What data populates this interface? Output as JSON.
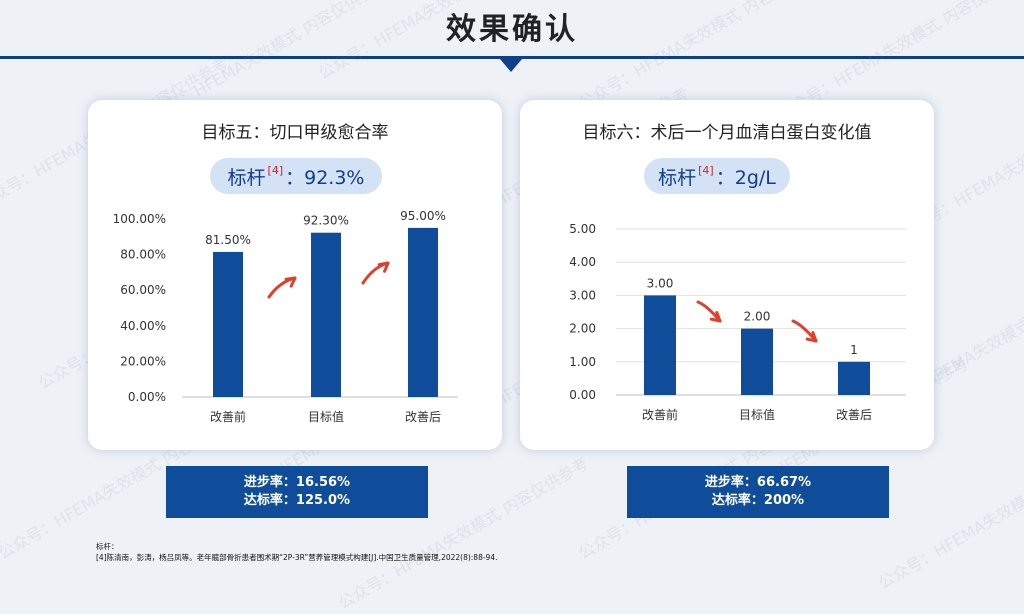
{
  "page": {
    "title": "效果确认",
    "watermark": "公众号：HFEMA失效模式 内容仅供参考"
  },
  "colors": {
    "accent": "#0f4c99",
    "arrow": "#e0402b",
    "red_ref": "#d42020"
  },
  "left_card": {
    "title": "目标五：切口甲级愈合率",
    "benchmark_label": "标杆",
    "benchmark_ref": "[4]",
    "benchmark_value": "：92.3%",
    "summary_line1": "进步率：16.56%",
    "summary_line2": "达标率：125.0%"
  },
  "right_card": {
    "title": "目标六：术后一个月血清白蛋白变化值",
    "benchmark_label": "标杆",
    "benchmark_ref": "[4]",
    "benchmark_value": "：2g/L",
    "summary_line1": "进步率：66.67%",
    "summary_line2": "达标率：200%"
  },
  "footnote": {
    "line1": "标杆：",
    "line2": "[4]陈清南，彭涛，杨吕凤等。老年髋部骨折患者围术期“2P-3R”营养管理模式构建[J].中国卫生质量管理,2022(8):88-94."
  },
  "chart_data": [
    {
      "type": "bar",
      "categories": [
        "改善前",
        "目标值",
        "改善后"
      ],
      "values": [
        81.5,
        92.3,
        95.0
      ],
      "value_labels": [
        "81.50%",
        "92.30%",
        "95.00%"
      ],
      "ylim": [
        0,
        100
      ],
      "yticks": [
        0,
        20,
        40,
        60,
        80,
        100
      ],
      "ytick_labels": [
        "0.00%",
        "20.00%",
        "40.00%",
        "60.00%",
        "80.00%",
        "100.00%"
      ],
      "grid": false,
      "color": "#0f4c99"
    },
    {
      "type": "bar",
      "categories": [
        "改善前",
        "目标值",
        "改善后"
      ],
      "values": [
        3.0,
        2.0,
        1.0
      ],
      "value_labels": [
        "3.00",
        "2.00",
        "1"
      ],
      "ylim": [
        0,
        5
      ],
      "yticks": [
        0,
        1,
        2,
        3,
        4,
        5
      ],
      "ytick_labels": [
        "0.00",
        "1.00",
        "2.00",
        "3.00",
        "4.00",
        "5.00"
      ],
      "grid": true,
      "color": "#0f4c99"
    }
  ]
}
